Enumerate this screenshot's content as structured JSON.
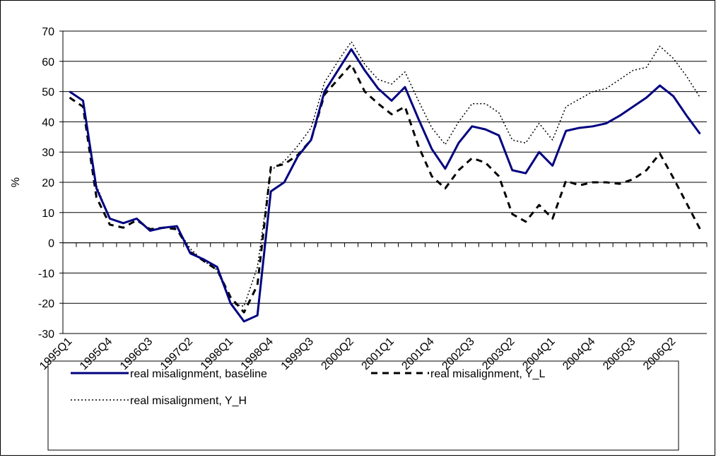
{
  "chart_data": {
    "type": "line",
    "ylabel": "%",
    "categories": [
      "1995Q1",
      null,
      null,
      "1995Q4",
      null,
      null,
      "1996Q3",
      null,
      null,
      "1997Q2",
      null,
      null,
      "1998Q1",
      null,
      null,
      "1998Q4",
      null,
      null,
      "1999Q3",
      null,
      null,
      "2000Q2",
      null,
      null,
      "2001Q1",
      null,
      null,
      "2001Q4",
      null,
      null,
      "2002Q3",
      null,
      null,
      "2003Q2",
      null,
      null,
      "2004Q1",
      null,
      null,
      "2004Q4",
      null,
      null,
      "2005Q3",
      null,
      null,
      "2006Q2",
      null,
      null
    ],
    "series": [
      {
        "name": "real misalignment, baseline",
        "color": "#000080",
        "line_style": "solid",
        "values": [
          50,
          47,
          18,
          8,
          6.5,
          8,
          4,
          5,
          5.5,
          -3.5,
          -5.5,
          -8,
          -20,
          -26,
          -24,
          17,
          20,
          28.5,
          34,
          50,
          57,
          64,
          57,
          51,
          47,
          51.5,
          41,
          31,
          24.5,
          33,
          38.5,
          37.5,
          35.5,
          24,
          23,
          30,
          25.5,
          37,
          38,
          38.5,
          39.5,
          42,
          45,
          48,
          52,
          48.5,
          42,
          36
        ]
      },
      {
        "name": "real misalignment, Y_L",
        "color": "#000000",
        "line_style": "dashed",
        "values": [
          48,
          45,
          15,
          6,
          5,
          7.5,
          4.5,
          5,
          4.5,
          -3,
          -6,
          -9,
          -18,
          -23,
          -14,
          25,
          26,
          29,
          34,
          49,
          54,
          59,
          50,
          46,
          42.5,
          45,
          32,
          22,
          18,
          24,
          28,
          26.5,
          22,
          9.5,
          7,
          12.5,
          8,
          20.5,
          19,
          20,
          20,
          19.5,
          21,
          24,
          29.5,
          21.5,
          13,
          4.5
        ]
      },
      {
        "name": "real misalignment, Y_H",
        "color": "#000000",
        "line_style": "dotted",
        "values": [
          50,
          47,
          19,
          8,
          6.5,
          8,
          4,
          5,
          5,
          -2,
          -6,
          -9,
          -20,
          -21,
          -8,
          24,
          27,
          32,
          38,
          53,
          60,
          66.5,
          59,
          54,
          52.5,
          56.5,
          47,
          38,
          32.5,
          40,
          46,
          46,
          43,
          34,
          33,
          39.5,
          34,
          45,
          47.5,
          50,
          51,
          54,
          57,
          58,
          65,
          61,
          55,
          48
        ]
      }
    ],
    "ylim": [
      -30,
      70
    ],
    "yticks": [
      -30,
      -20,
      -10,
      0,
      10,
      20,
      30,
      40,
      50,
      60,
      70
    ],
    "grid": true
  }
}
